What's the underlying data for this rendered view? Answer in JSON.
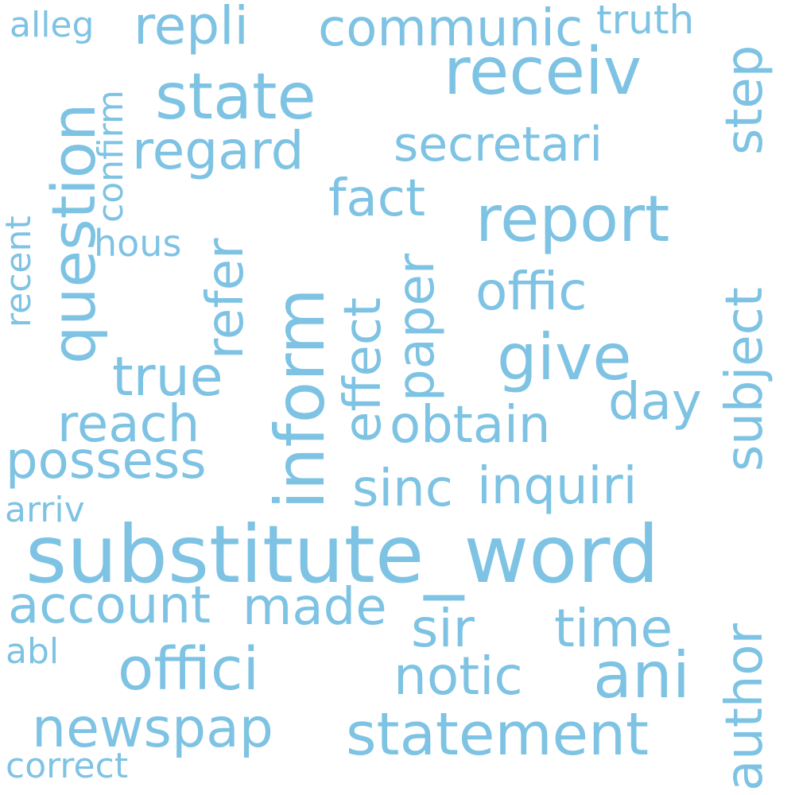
{
  "color": "#7ec3e3",
  "words": {
    "substitute_word": "substitute_word",
    "inform": "inform",
    "question": "question",
    "receiv": "receiv",
    "report": "report",
    "state": "state",
    "regard": "regard",
    "communic": "communic",
    "statement": "statement",
    "offici": "offici",
    "ani": "ani",
    "obtain": "obtain",
    "secretari": "secretari",
    "give": "give",
    "repli": "repli",
    "newspap": "newspap",
    "subject": "subject",
    "author": "author",
    "inquiri": "inquiri",
    "offic": "offic",
    "true": "true",
    "reach": "reach",
    "possess": "possess",
    "account": "account",
    "made": "made",
    "sir": "sir",
    "time": "time",
    "notic": "notic",
    "effect": "effect",
    "paper": "paper",
    "refer": "refer",
    "fact": "fact",
    "step": "step",
    "day": "day",
    "sinc": "sinc",
    "truth": "truth",
    "alleg": "alleg",
    "confirm": "confirm",
    "hous": "hous",
    "recent": "recent",
    "arriv": "arriv",
    "abl": "abl",
    "correct": "correct"
  }
}
